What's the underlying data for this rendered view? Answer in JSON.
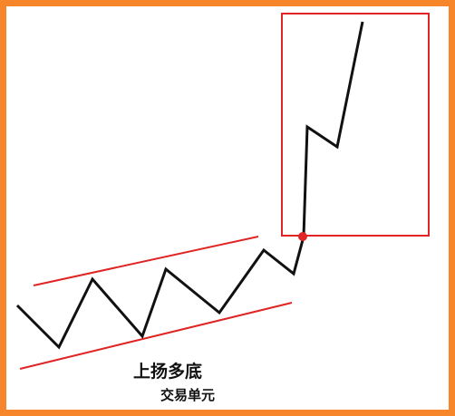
{
  "diagram": {
    "pattern_label": "上扬多底",
    "subtitle": "交易单元",
    "colors": {
      "frame": "#f7862a",
      "channel": "#e02424",
      "box": "#e02424",
      "price_line": "#111111",
      "breakout_point": "#e02424"
    }
  }
}
